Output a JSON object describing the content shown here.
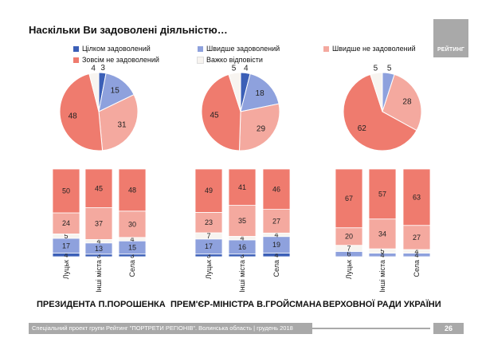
{
  "title": "Наскільки Ви задоволені діяльністю…",
  "logo_text": "РЕЙТИНГ",
  "legend": [
    {
      "label": "Цілком задоволений",
      "color": "#3b5fb7"
    },
    {
      "label": "Швидше задоволений",
      "color": "#8ea1dd"
    },
    {
      "label": "Швидше не задоволений",
      "color": "#f4a99f"
    },
    {
      "label": "Зовсім не задоволений",
      "color": "#ef7b6e"
    },
    {
      "label": "Важко відповісти",
      "color": "#f7f4f0"
    }
  ],
  "sections": [
    {
      "title": "ПРЕЗИДЕНТА П.ПОРОШЕНКА"
    },
    {
      "title": "ПРЕМ'ЄР-МІНІСТРА В.ГРОЙСМАНА"
    },
    {
      "title": "ВЕРХОВНОЇ РАДИ УКРАЇНИ"
    }
  ],
  "chart_data": [
    {
      "type": "pie",
      "series_order": [
        "Цілком задоволений",
        "Швидше задоволений",
        "Швидше не задоволений",
        "Зовсім не задоволений",
        "Важко відповісти"
      ],
      "values": [
        3,
        15,
        31,
        48,
        4
      ]
    },
    {
      "type": "pie",
      "series_order": [
        "Цілком задоволений",
        "Швидше задоволений",
        "Швидше не задоволений",
        "Зовсім не задоволений",
        "Важко відповісти"
      ],
      "values": [
        4,
        18,
        29,
        45,
        5
      ]
    },
    {
      "type": "pie",
      "series_order": [
        "Цілком задоволений",
        "Швидше задоволений",
        "Швидше не задоволений",
        "Зовсім не задоволений",
        "Важко відповісти"
      ],
      "values": [
        0,
        5,
        28,
        62,
        5
      ]
    },
    {
      "type": "bar",
      "stacked": true,
      "categories": [
        "Луцьк",
        "Інші міста",
        "Села"
      ],
      "series": [
        {
          "name": "Цілком задоволений",
          "values": [
            4,
            3,
            3
          ]
        },
        {
          "name": "Швидше задоволений",
          "values": [
            17,
            13,
            15
          ]
        },
        {
          "name": "Важко відповісти",
          "values": [
            5,
            4,
            4
          ]
        },
        {
          "name": "Швидше не задоволений",
          "values": [
            24,
            37,
            30
          ]
        },
        {
          "name": "Зовсім не задоволений",
          "values": [
            50,
            45,
            48
          ]
        }
      ]
    },
    {
      "type": "bar",
      "stacked": true,
      "categories": [
        "Луцьк",
        "Інші міста",
        "Села"
      ],
      "series": [
        {
          "name": "Цілком задоволений",
          "values": [
            3,
            3,
            4
          ]
        },
        {
          "name": "Швидше задоволений",
          "values": [
            17,
            16,
            19
          ]
        },
        {
          "name": "Важко відповісти",
          "values": [
            7,
            4,
            4
          ]
        },
        {
          "name": "Швидше не задоволений",
          "values": [
            23,
            35,
            27
          ]
        },
        {
          "name": "Зовсім не задоволений",
          "values": [
            49,
            41,
            46
          ]
        }
      ]
    },
    {
      "type": "bar",
      "stacked": true,
      "categories": [
        "Луцьк",
        "Інші міста",
        "Села"
      ],
      "series": [
        {
          "name": "Цілком задоволений",
          "values": [
            0,
            0,
            0
          ]
        },
        {
          "name": "Швидше задоволений",
          "values": [
            6,
            4,
            4
          ]
        },
        {
          "name": "Важко відповісти",
          "values": [
            7,
            5,
            4
          ]
        },
        {
          "name": "Швидше не задоволений",
          "values": [
            20,
            34,
            27
          ]
        },
        {
          "name": "Зовсім не задоволений",
          "values": [
            67,
            57,
            63
          ]
        }
      ]
    }
  ],
  "footer": "Спеціальний проект групи Рейтинг \"ПОРТРЕТИ РЕГІОНІВ\". Волинська область | грудень 2018",
  "page_number": "26"
}
